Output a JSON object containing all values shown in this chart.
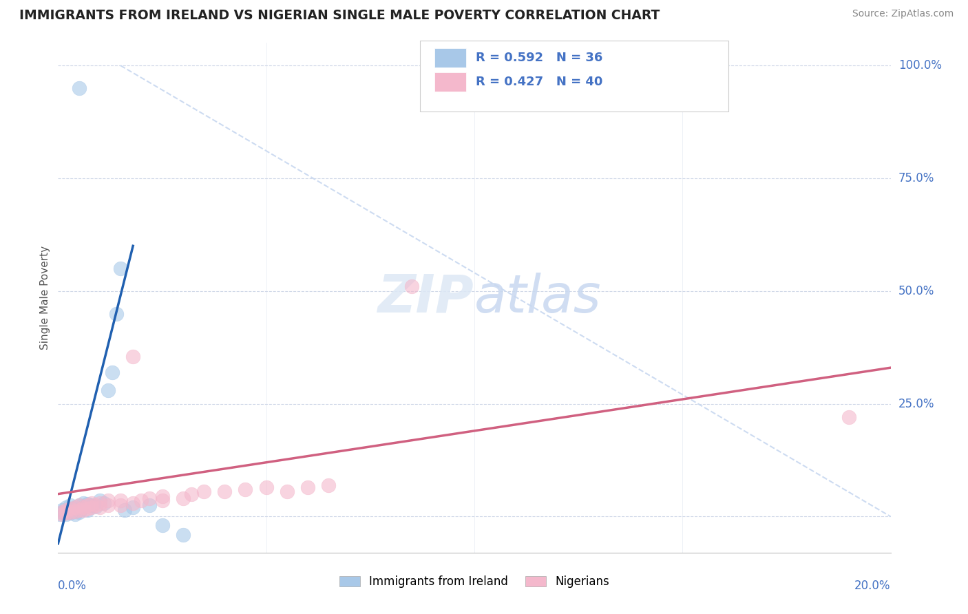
{
  "title": "IMMIGRANTS FROM IRELAND VS NIGERIAN SINGLE MALE POVERTY CORRELATION CHART",
  "source": "Source: ZipAtlas.com",
  "ylabel": "Single Male Poverty",
  "xlim": [
    0.0,
    0.2
  ],
  "ylim": [
    -0.08,
    1.05
  ],
  "ireland_color": "#a8c8e8",
  "nigeria_color": "#f4b8cc",
  "ireland_line_color": "#2060b0",
  "nigeria_line_color": "#d06080",
  "diagonal_color": "#c8d8f0",
  "background_color": "#ffffff",
  "grid_color": "#d0d8e8",
  "ireland_scatter": [
    [
      0.0005,
      0.005
    ],
    [
      0.001,
      0.01
    ],
    [
      0.001,
      0.015
    ],
    [
      0.0015,
      0.008
    ],
    [
      0.002,
      0.02
    ],
    [
      0.002,
      0.01
    ],
    [
      0.002,
      0.005
    ],
    [
      0.0025,
      0.012
    ],
    [
      0.003,
      0.015
    ],
    [
      0.003,
      0.025
    ],
    [
      0.003,
      0.008
    ],
    [
      0.0035,
      0.018
    ],
    [
      0.004,
      0.02
    ],
    [
      0.004,
      0.012
    ],
    [
      0.004,
      0.005
    ],
    [
      0.005,
      0.025
    ],
    [
      0.005,
      0.015
    ],
    [
      0.005,
      0.01
    ],
    [
      0.006,
      0.03
    ],
    [
      0.006,
      0.02
    ],
    [
      0.007,
      0.028
    ],
    [
      0.007,
      0.015
    ],
    [
      0.008,
      0.025
    ],
    [
      0.009,
      0.022
    ],
    [
      0.01,
      0.035
    ],
    [
      0.011,
      0.03
    ],
    [
      0.012,
      0.28
    ],
    [
      0.013,
      0.32
    ],
    [
      0.014,
      0.45
    ],
    [
      0.015,
      0.55
    ],
    [
      0.016,
      0.015
    ],
    [
      0.018,
      0.02
    ],
    [
      0.022,
      0.025
    ],
    [
      0.025,
      -0.02
    ],
    [
      0.03,
      -0.04
    ],
    [
      0.005,
      0.95
    ]
  ],
  "nigeria_scatter": [
    [
      0.001,
      0.005
    ],
    [
      0.001,
      0.01
    ],
    [
      0.002,
      0.008
    ],
    [
      0.002,
      0.015
    ],
    [
      0.003,
      0.01
    ],
    [
      0.003,
      0.018
    ],
    [
      0.004,
      0.012
    ],
    [
      0.004,
      0.02
    ],
    [
      0.005,
      0.015
    ],
    [
      0.005,
      0.025
    ],
    [
      0.006,
      0.02
    ],
    [
      0.006,
      0.015
    ],
    [
      0.007,
      0.025
    ],
    [
      0.007,
      0.018
    ],
    [
      0.008,
      0.02
    ],
    [
      0.008,
      0.03
    ],
    [
      0.009,
      0.025
    ],
    [
      0.01,
      0.02
    ],
    [
      0.01,
      0.03
    ],
    [
      0.012,
      0.025
    ],
    [
      0.012,
      0.035
    ],
    [
      0.015,
      0.025
    ],
    [
      0.015,
      0.035
    ],
    [
      0.018,
      0.03
    ],
    [
      0.018,
      0.355
    ],
    [
      0.02,
      0.035
    ],
    [
      0.022,
      0.04
    ],
    [
      0.025,
      0.035
    ],
    [
      0.025,
      0.045
    ],
    [
      0.03,
      0.04
    ],
    [
      0.032,
      0.05
    ],
    [
      0.035,
      0.055
    ],
    [
      0.04,
      0.055
    ],
    [
      0.045,
      0.06
    ],
    [
      0.05,
      0.065
    ],
    [
      0.055,
      0.055
    ],
    [
      0.06,
      0.065
    ],
    [
      0.065,
      0.07
    ],
    [
      0.085,
      0.51
    ],
    [
      0.19,
      0.22
    ]
  ],
  "ireland_line": [
    [
      0.0,
      -0.06
    ],
    [
      0.018,
      0.6
    ]
  ],
  "nigeria_line": [
    [
      0.0,
      0.05
    ],
    [
      0.2,
      0.33
    ]
  ],
  "diagonal_line": [
    [
      0.015,
      1.0
    ],
    [
      0.2,
      0.0
    ]
  ],
  "ytick_positions": [
    0.0,
    0.25,
    0.5,
    0.75,
    1.0
  ],
  "ytick_labels": [
    "",
    "25.0%",
    "50.0%",
    "75.0%",
    "100.0%"
  ],
  "label_color": "#4472c4",
  "title_color": "#222222",
  "source_color": "#888888",
  "ylabel_color": "#555555"
}
